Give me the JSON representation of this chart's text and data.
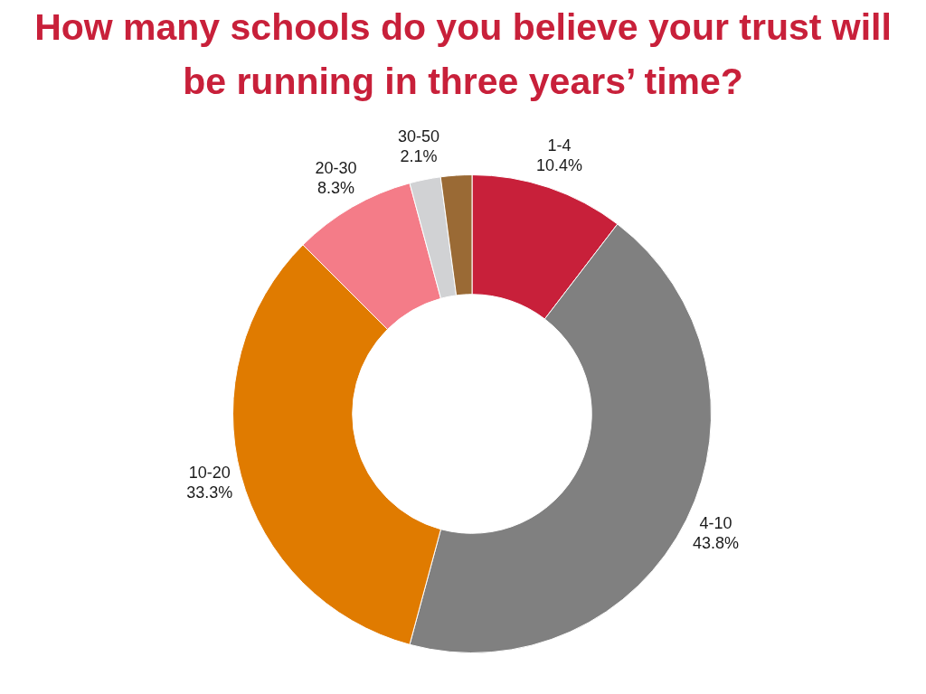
{
  "chart_data": {
    "type": "donut",
    "title": "How many schools do you believe your trust will be running in three years’ time?",
    "categories": [
      "1-4",
      "4-10",
      "10-20",
      "20-30",
      "30-50",
      null
    ],
    "values": [
      10.4,
      43.8,
      33.3,
      8.3,
      2.1,
      2.1
    ],
    "colors": [
      "#c8203a",
      "#808080",
      "#e07b00",
      "#f47c88",
      "#d1d2d4",
      "#9a6a35"
    ],
    "value_labels": [
      "10.4%",
      "43.8%",
      "33.3%",
      "8.3%",
      "2.1%",
      null
    ]
  }
}
